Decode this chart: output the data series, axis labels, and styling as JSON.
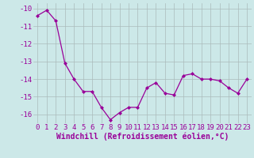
{
  "x": [
    0,
    1,
    2,
    3,
    4,
    5,
    6,
    7,
    8,
    9,
    10,
    11,
    12,
    13,
    14,
    15,
    16,
    17,
    18,
    19,
    20,
    21,
    22,
    23
  ],
  "y": [
    -10.4,
    -10.1,
    -10.7,
    -13.1,
    -14.0,
    -14.7,
    -14.7,
    -15.6,
    -16.3,
    -15.9,
    -15.6,
    -15.6,
    -14.5,
    -14.2,
    -14.8,
    -14.9,
    -13.8,
    -13.7,
    -14.0,
    -14.0,
    -14.1,
    -14.5,
    -14.8,
    -14.0
  ],
  "ylim": [
    -16.5,
    -9.7
  ],
  "yticks": [
    -16,
    -15,
    -14,
    -13,
    -12,
    -11,
    -10
  ],
  "xlabel": "Windchill (Refroidissement éolien,°C)",
  "line_color": "#990099",
  "marker_color": "#990099",
  "bg_color": "#cce8e8",
  "grid_color": "#aabbbb",
  "tick_color": "#990099",
  "label_color": "#990099",
  "font_size": 6.5,
  "xlabel_fontsize": 7.0
}
